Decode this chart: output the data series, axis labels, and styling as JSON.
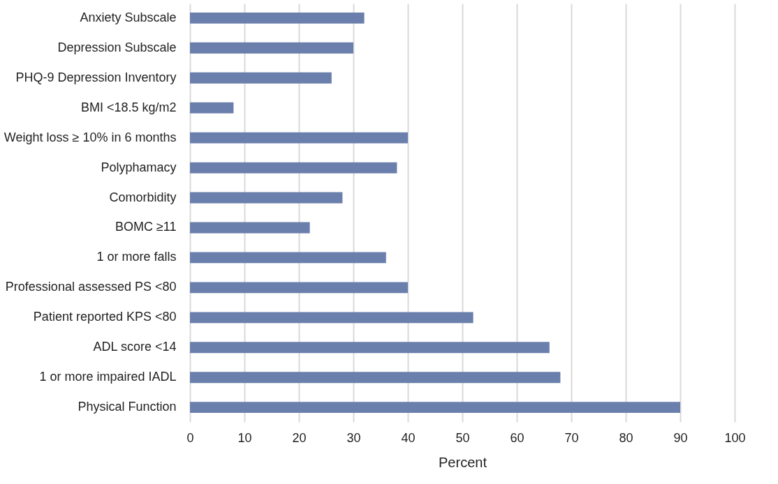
{
  "chart_data": {
    "type": "bar",
    "orientation": "horizontal",
    "xlabel": "Percent",
    "categories": [
      "Anxiety Subscale",
      "Depression Subscale ",
      "PHQ-9 Depression Inventory",
      "BMI <18.5 kg/m2",
      "Weight loss ≥ 10% in 6 months",
      "Polyphamacy",
      "Comorbidity",
      "BOMC ≥11",
      "1 or more falls",
      "Professional assessed PS <80",
      "Patient reported KPS <80",
      "ADL score <14",
      "1 or more impaired IADL",
      "Physical Function"
    ],
    "values": [
      32,
      30,
      26,
      8,
      40,
      38,
      28,
      22,
      36,
      40,
      52,
      66,
      68,
      90
    ],
    "color": "#6a7fab",
    "xlim": [
      0,
      100
    ],
    "xticks": [
      0,
      10,
      20,
      30,
      40,
      50,
      60,
      70,
      80,
      90,
      100
    ],
    "grid": "x"
  }
}
